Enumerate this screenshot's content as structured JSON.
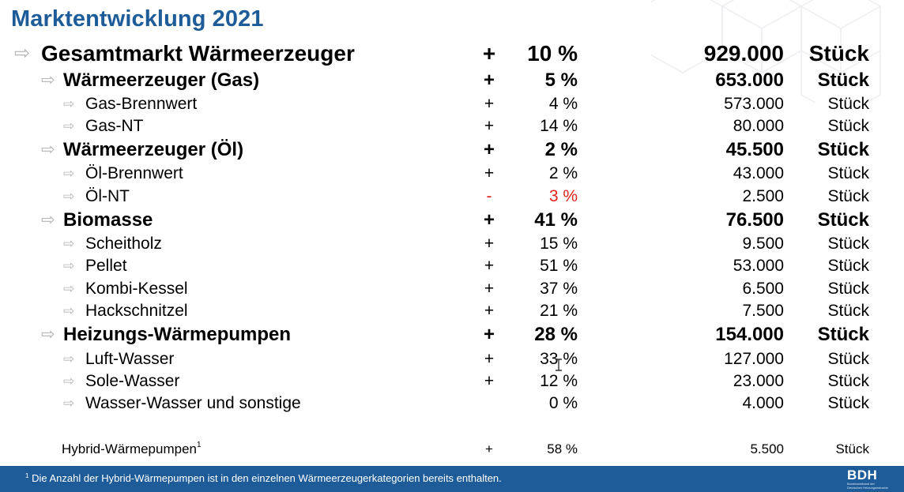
{
  "title": "Marktentwicklung 2021",
  "arrow_glyph": "⇨",
  "rows": [
    {
      "label": "Gesamtmarkt Wärmeerzeuger",
      "sign": "+",
      "pct": "10 %",
      "value": "929.000",
      "unit": "Stück"
    },
    {
      "label": "Wärmeerzeuger (Gas)",
      "sign": "+",
      "pct": "5 %",
      "value": "653.000",
      "unit": "Stück"
    },
    {
      "label": "Gas-Brennwert",
      "sign": "+",
      "pct": "4 %",
      "value": "573.000",
      "unit": "Stück"
    },
    {
      "label": "Gas-NT",
      "sign": "+",
      "pct": "14 %",
      "value": "80.000",
      "unit": "Stück"
    },
    {
      "label": "Wärmeerzeuger (Öl)",
      "sign": "+",
      "pct": "2 %",
      "value": "45.500",
      "unit": "Stück"
    },
    {
      "label": "Öl-Brennwert",
      "sign": "+",
      "pct": "2 %",
      "value": "43.000",
      "unit": "Stück"
    },
    {
      "label": "Öl-NT",
      "sign": "-",
      "pct": "3 %",
      "value": "2.500",
      "unit": "Stück",
      "color": "#e2231a"
    },
    {
      "label": "Biomasse",
      "sign": "+",
      "pct": "41 %",
      "value": "76.500",
      "unit": "Stück"
    },
    {
      "label": "Scheitholz",
      "sign": "+",
      "pct": "15 %",
      "value": "9.500",
      "unit": "Stück"
    },
    {
      "label": "Pellet",
      "sign": "+",
      "pct": "51 %",
      "value": "53.000",
      "unit": "Stück"
    },
    {
      "label": "Kombi-Kessel",
      "sign": "+",
      "pct": "37 %",
      "value": "6.500",
      "unit": "Stück"
    },
    {
      "label": "Hackschnitzel",
      "sign": "+",
      "pct": "21 %",
      "value": "7.500",
      "unit": "Stück"
    },
    {
      "label": "Heizungs-Wärmepumpen",
      "sign": "+",
      "pct": "28 %",
      "value": "154.000",
      "unit": "Stück"
    },
    {
      "label": "Luft-Wasser",
      "sign": "+",
      "pct": "33 %",
      "value": "127.000",
      "unit": "Stück"
    },
    {
      "label": "Sole-Wasser",
      "sign": "+",
      "pct": "12 %",
      "value": "23.000",
      "unit": "Stück"
    },
    {
      "label": "Wasser-Wasser und sonstige",
      "sign": "",
      "pct": "0 %",
      "value": "4.000",
      "unit": "Stück"
    }
  ],
  "hybrid": {
    "label": "Hybrid-Wärmepumpen",
    "sup": "1",
    "sign": "+",
    "pct": "58 %",
    "value": "5.500",
    "unit": "Stück"
  },
  "footer": {
    "sup": "1",
    "text": "Die Anzahl der Hybrid-Wärmepumpen ist in den einzelnen Wärmeerzeugerkategorien bereits enthalten.",
    "logo_text": "BDH",
    "logo_sub_1": "Bundesverband der",
    "logo_sub_2": "Deutschen Heizungsindustrie"
  },
  "colors": {
    "accent": "#1d5c99",
    "negative": "#e2231a",
    "arrow": "#b4b4b4"
  }
}
